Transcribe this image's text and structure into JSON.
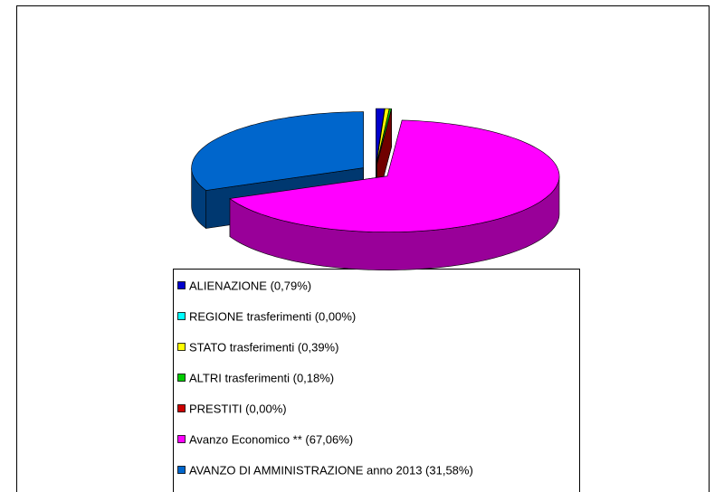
{
  "chart_data": {
    "type": "pie3d",
    "categories": [
      "ALIENAZIONE (0,79%)",
      "REGIONE trasferimenti (0,00%)",
      "STATO trasferimenti (0,39%)",
      "ALTRI trasferimenti (0,18%)",
      "PRESTITI (0,00%)",
      "Avanzo Economico ** (67,06%)",
      "AVANZO DI AMMINISTRAZIONE anno 2013 (31,58%)"
    ],
    "values": [
      0.79,
      0,
      0.39,
      0.18,
      0,
      67.06,
      31.58
    ],
    "colors": [
      "#0000cc",
      "#00ffff",
      "#ffff00",
      "#00cc00",
      "#cc0000",
      "#ff00ff",
      "#0066cc"
    ],
    "legend": "bottom"
  }
}
